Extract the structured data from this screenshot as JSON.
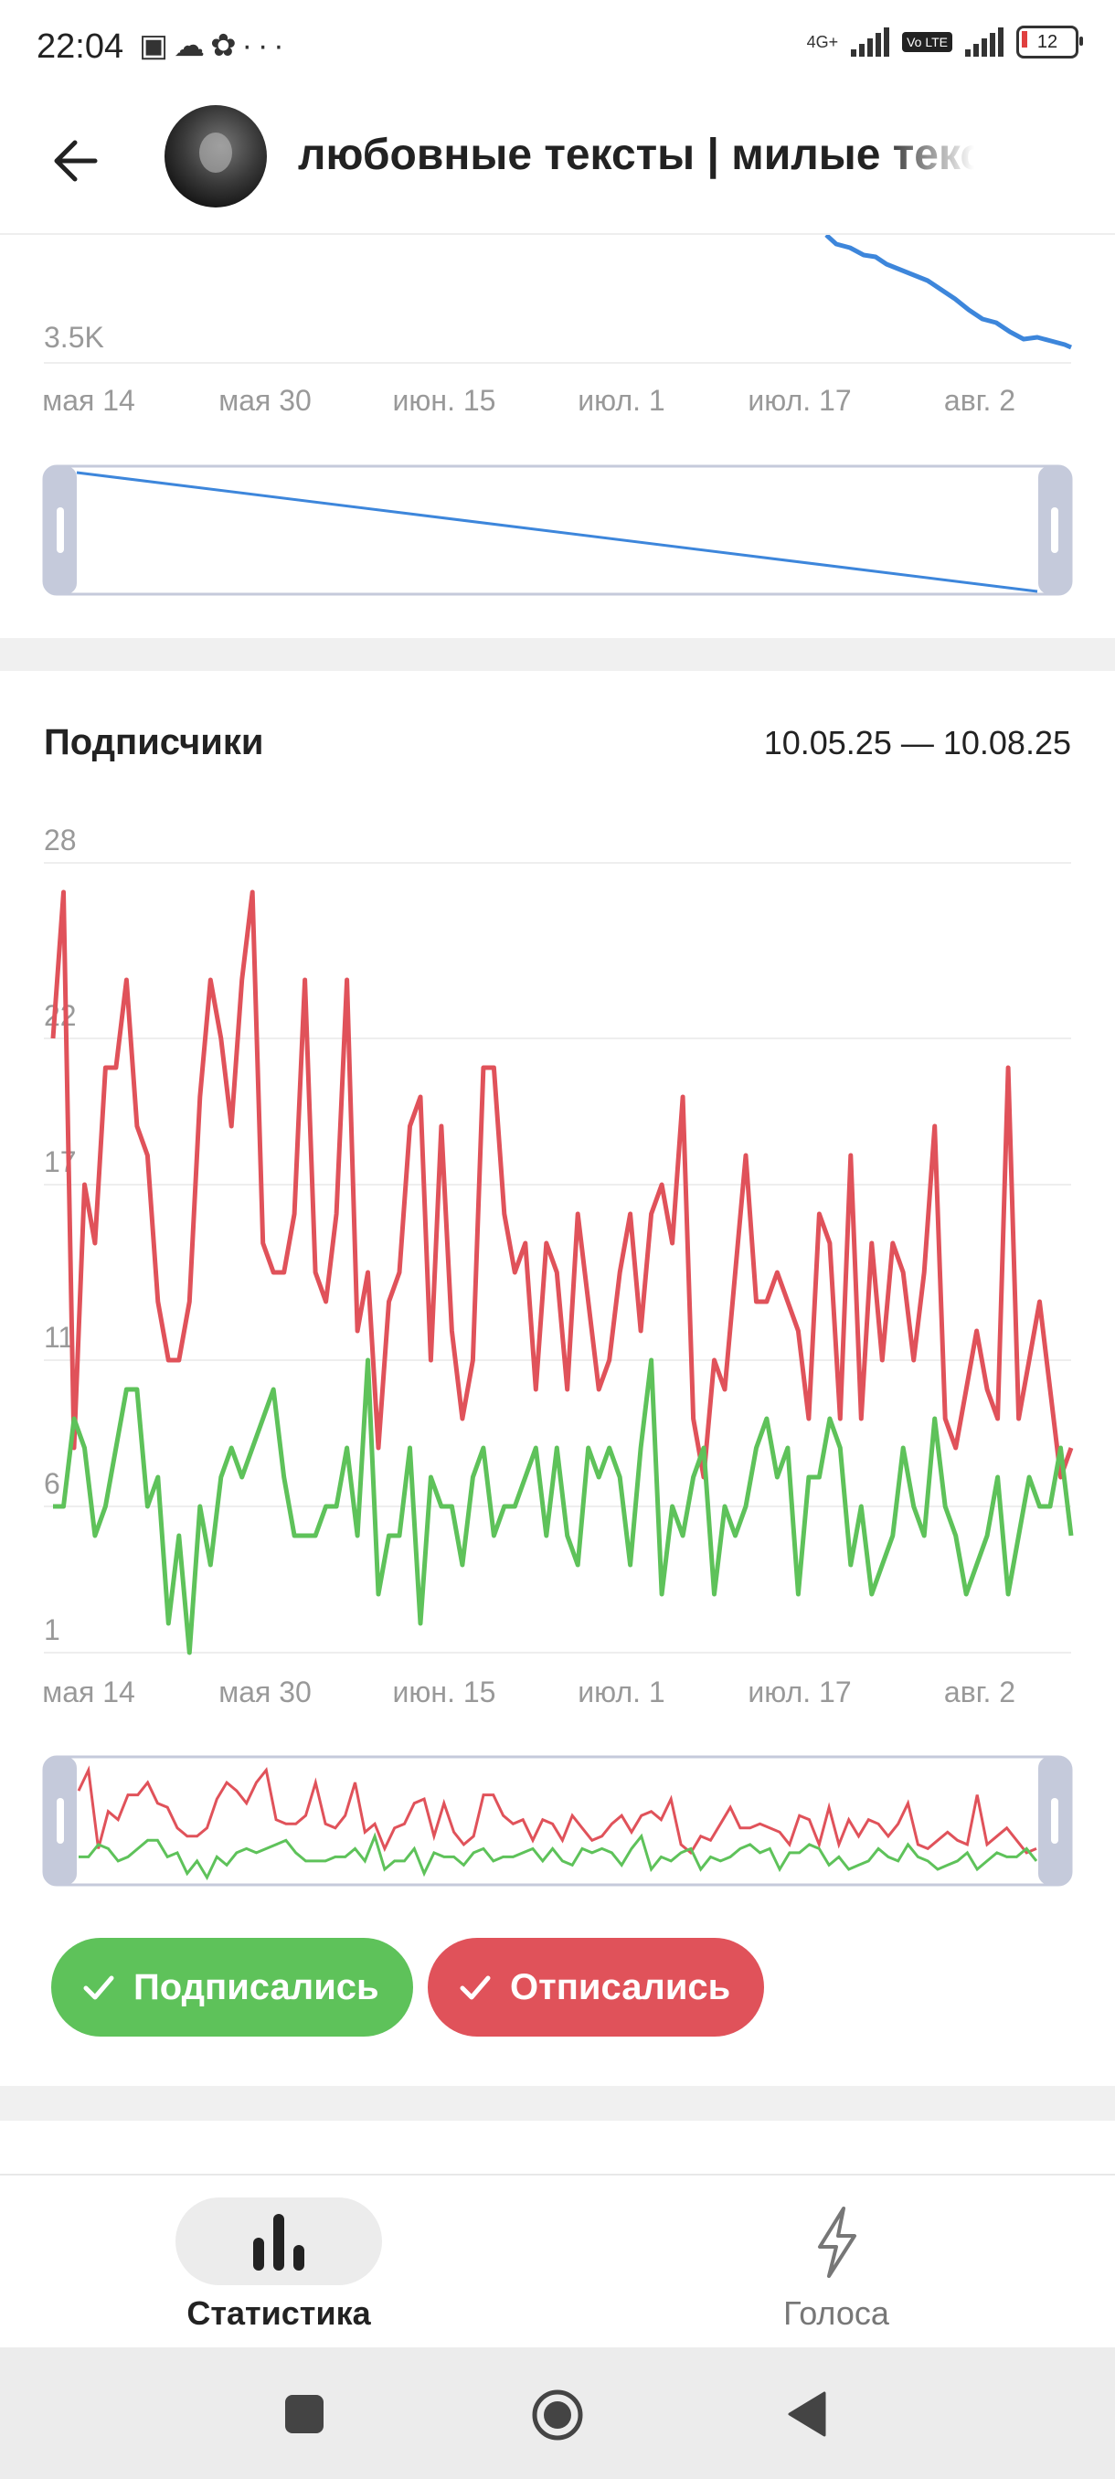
{
  "status_bar": {
    "time": "22:04",
    "icons": [
      "battery-saver-icon",
      "cloud-icon",
      "app-icon",
      "more-dots-icon"
    ],
    "network_label": "4G+",
    "volte_label": "Vo LTE",
    "battery_level": "12"
  },
  "header": {
    "title": "любовные тексты | милые тексты"
  },
  "top_chart": {
    "y_tick": "3.5K",
    "x_ticks": [
      "мая 14",
      "мая 30",
      "июн. 15",
      "июл. 1",
      "июл. 17",
      "авг. 2"
    ],
    "line_color": "#3d86db"
  },
  "subscribers": {
    "title": "Подписчики",
    "date_range": "10.05.25 — 10.08.25"
  },
  "chart_data": {
    "type": "line",
    "title": "Подписчики",
    "x_ticks": [
      "мая 14",
      "мая 30",
      "июн. 15",
      "июл. 1",
      "июл. 17",
      "авг. 2"
    ],
    "y_ticks": [
      "28",
      "22",
      "17",
      "11",
      "6",
      "1"
    ],
    "ylim": [
      1,
      28
    ],
    "x_start": "2025-05-10",
    "x_end": "2025-08-10",
    "grid": true,
    "legend": "bottom",
    "series": [
      {
        "name": "Отписались",
        "color": "#e0525a",
        "values": [
          22,
          27,
          8,
          17,
          15,
          21,
          21,
          24,
          19,
          18,
          13,
          11,
          11,
          13,
          20,
          24,
          22,
          19,
          24,
          27,
          15,
          14,
          14,
          16,
          24,
          14,
          13,
          16,
          24,
          12,
          14,
          8,
          13,
          14,
          19,
          20,
          11,
          19,
          12,
          9,
          11,
          21,
          21,
          16,
          14,
          15,
          10,
          15,
          14,
          10,
          16,
          13,
          10,
          11,
          14,
          16,
          12,
          16,
          17,
          15,
          20,
          9,
          7,
          11,
          10,
          14,
          18,
          13,
          13,
          14,
          13,
          12,
          9,
          16,
          15,
          9,
          18,
          9,
          15,
          11,
          15,
          14,
          11,
          14,
          19,
          9,
          8,
          10,
          12,
          10,
          9,
          21,
          9,
          11,
          13,
          10,
          7,
          8
        ]
      },
      {
        "name": "Подписались",
        "color": "#5ec25a",
        "values": [
          6,
          6,
          9,
          8,
          5,
          6,
          8,
          10,
          10,
          6,
          7,
          2,
          5,
          1,
          6,
          4,
          7,
          8,
          7,
          8,
          9,
          10,
          7,
          5,
          5,
          5,
          6,
          6,
          8,
          5,
          11,
          3,
          5,
          5,
          8,
          2,
          7,
          6,
          6,
          4,
          7,
          8,
          5,
          6,
          6,
          7,
          8,
          5,
          8,
          5,
          4,
          8,
          7,
          8,
          7,
          4,
          8,
          11,
          3,
          6,
          5,
          7,
          8,
          3,
          6,
          5,
          6,
          8,
          9,
          7,
          8,
          3,
          7,
          7,
          9,
          8,
          4,
          6,
          3,
          4,
          5,
          8,
          6,
          5,
          9,
          6,
          5,
          3,
          4,
          5,
          7,
          3,
          5,
          7,
          6,
          6,
          8,
          5
        ]
      }
    ]
  },
  "legend_buttons": [
    {
      "label": "Подписались",
      "color": "#5ec25a"
    },
    {
      "label": "Отписались",
      "color": "#e0525a"
    }
  ],
  "bottom_nav": {
    "items": [
      {
        "label": "Статистика",
        "icon": "bar-chart-icon",
        "active": true
      },
      {
        "label": "Голоса",
        "icon": "lightning-icon",
        "active": false
      }
    ]
  },
  "system_nav": [
    "recents-square-icon",
    "home-circle-icon",
    "back-triangle-icon"
  ]
}
